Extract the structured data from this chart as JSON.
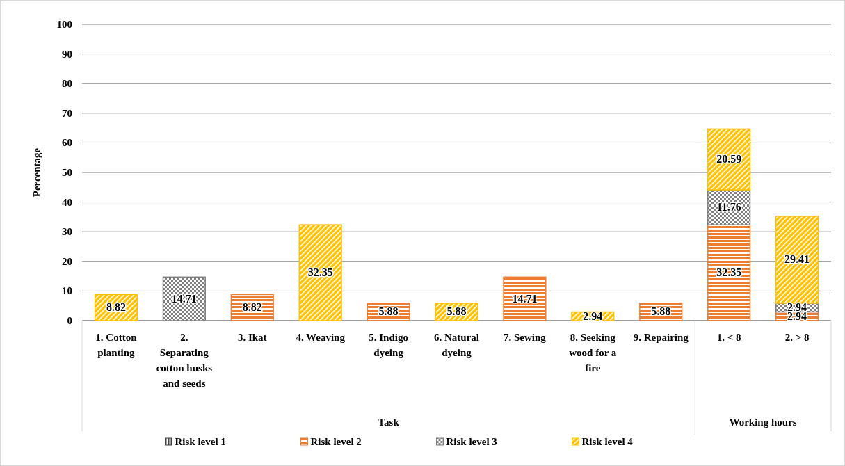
{
  "chart_data": {
    "type": "bar",
    "stacked": true,
    "ylabel": "Percentage",
    "categories": [
      "1. Cotton planting",
      "2. Separating cotton husks and seeds",
      "3. Ikat",
      "4. Weaving",
      "5. Indigo dyeing",
      "6. Natural dyeing",
      "7. Sewing",
      "8. Seeking wood for a fire",
      "9. Repairing",
      "1. < 8",
      "2. > 8"
    ],
    "series": [
      {
        "name": "Risk level 1",
        "color": "#404040",
        "values": [
          null,
          null,
          null,
          null,
          null,
          null,
          null,
          null,
          null,
          null,
          null
        ]
      },
      {
        "name": "Risk level 2",
        "color": "#ed7d31",
        "values": [
          null,
          null,
          8.82,
          null,
          5.88,
          null,
          14.71,
          null,
          5.88,
          32.35,
          2.94
        ]
      },
      {
        "name": "Risk level 3",
        "color": "#7f7f7f",
        "values": [
          null,
          14.71,
          null,
          null,
          null,
          null,
          null,
          null,
          null,
          11.76,
          2.94
        ]
      },
      {
        "name": "Risk level 4",
        "color": "#ffc000",
        "values": [
          8.82,
          null,
          null,
          32.35,
          null,
          5.88,
          null,
          2.94,
          null,
          20.59,
          29.41
        ]
      }
    ],
    "annotations": [
      "Task",
      "Working hours"
    ],
    "ylim": [
      0,
      100
    ],
    "yticks": [
      0,
      10,
      20,
      30,
      40,
      50,
      60,
      70,
      80,
      90,
      100
    ],
    "grid": "y",
    "legend": "bottom",
    "data_labels": true
  }
}
